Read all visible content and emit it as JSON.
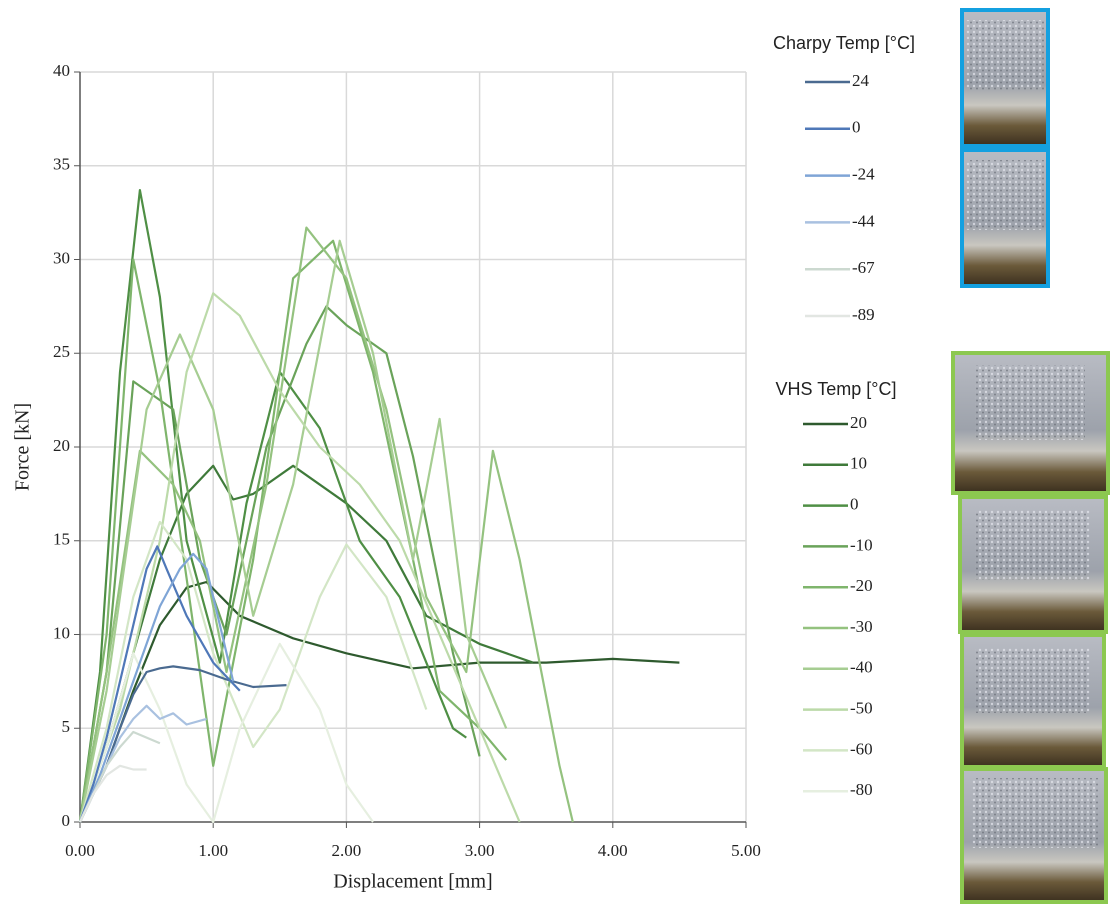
{
  "chart_data": {
    "type": "line",
    "x_label": "Displacement [mm]",
    "y_label": "Force [kN]",
    "xlim": [
      0,
      5
    ],
    "ylim": [
      0,
      40
    ],
    "xticks": [
      {
        "value": 0,
        "label": "0.00"
      },
      {
        "value": 1,
        "label": "1.00"
      },
      {
        "value": 2,
        "label": "2.00"
      },
      {
        "value": 3,
        "label": "3.00"
      },
      {
        "value": 4,
        "label": "4.00"
      },
      {
        "value": 5,
        "label": "5.00"
      }
    ],
    "yticks": [
      0,
      5,
      10,
      15,
      20,
      25,
      30,
      35,
      40
    ],
    "grid": true,
    "charpy": {
      "title": "Charpy Temp [°C]",
      "title_color": "#1a1aa0",
      "series": [
        {
          "name": "24",
          "color": "#4a6a90",
          "x": [
            0,
            0.1,
            0.2,
            0.3,
            0.4,
            0.5,
            0.6,
            0.7,
            0.9,
            1.1,
            1.3,
            1.55
          ],
          "values": [
            0,
            1.5,
            3,
            5,
            6.8,
            8,
            8.2,
            8.3,
            8.1,
            7.6,
            7.2,
            7.3
          ]
        },
        {
          "name": "0",
          "color": "#4f78b8",
          "x": [
            0,
            0.1,
            0.2,
            0.3,
            0.4,
            0.5,
            0.58,
            0.65,
            0.8,
            1.0,
            1.2
          ],
          "values": [
            0,
            2,
            4.5,
            7.5,
            10.5,
            13.5,
            14.7,
            13.5,
            11,
            8.5,
            7
          ]
        },
        {
          "name": "-24",
          "color": "#7fa5d6",
          "x": [
            0,
            0.15,
            0.3,
            0.45,
            0.6,
            0.75,
            0.85,
            0.95,
            1.05,
            1.15
          ],
          "values": [
            0,
            2.5,
            5.5,
            8.5,
            11.5,
            13.5,
            14.3,
            13.5,
            10.5,
            7.5
          ]
        },
        {
          "name": "-44",
          "color": "#a9c1e0",
          "x": [
            0,
            0.1,
            0.2,
            0.3,
            0.4,
            0.5,
            0.6,
            0.7,
            0.8,
            0.95
          ],
          "values": [
            0,
            1.5,
            3,
            4.5,
            5.5,
            6.2,
            5.5,
            5.8,
            5.2,
            5.5
          ]
        },
        {
          "name": "-67",
          "color": "#ccd9d0",
          "x": [
            0,
            0.1,
            0.2,
            0.3,
            0.4,
            0.5,
            0.6
          ],
          "values": [
            0,
            1.5,
            3,
            4,
            4.8,
            4.5,
            4.2
          ]
        },
        {
          "name": "-89",
          "color": "#e2e6e2",
          "x": [
            0,
            0.1,
            0.2,
            0.3,
            0.4,
            0.5
          ],
          "values": [
            0,
            1.5,
            2.5,
            3,
            2.8,
            2.8
          ]
        }
      ]
    },
    "vhs": {
      "title": "VHS Temp [°C]",
      "title_color": "#2d7a2d",
      "series": [
        {
          "name": "20",
          "color": "#2e5a2e",
          "x": [
            0,
            0.2,
            0.4,
            0.6,
            0.8,
            0.95,
            1.2,
            1.6,
            2.0,
            2.5,
            3.0,
            3.5,
            4.0,
            4.5
          ],
          "values": [
            0,
            3,
            7,
            10.5,
            12.5,
            12.8,
            11,
            9.8,
            9,
            8.2,
            8.5,
            8.5,
            8.7,
            8.5
          ]
        },
        {
          "name": "10",
          "color": "#3f7a3a",
          "x": [
            0,
            0.2,
            0.4,
            0.6,
            0.8,
            1.0,
            1.15,
            1.3,
            1.6,
            2.0,
            2.3,
            2.6,
            3.0,
            3.4
          ],
          "values": [
            0,
            4,
            9,
            14,
            17.5,
            19,
            17.2,
            17.5,
            19,
            17,
            15,
            11,
            9.5,
            8.5
          ]
        },
        {
          "name": "0",
          "color": "#4f8f45",
          "x": [
            0,
            0.15,
            0.3,
            0.45,
            0.6,
            0.8,
            1.05,
            1.25,
            1.5,
            1.8,
            2.1,
            2.4,
            2.8,
            2.9
          ],
          "values": [
            0,
            8,
            24,
            33.7,
            28,
            15,
            8.5,
            17,
            24,
            21,
            15,
            12,
            5,
            4.5
          ]
        },
        {
          "name": "-10",
          "color": "#6aa35a",
          "x": [
            0,
            0.2,
            0.4,
            0.7,
            0.9,
            1.1,
            1.4,
            1.7,
            1.85,
            2.0,
            2.3,
            2.5,
            2.8,
            3.0
          ],
          "values": [
            0,
            8,
            23.5,
            22,
            14,
            10,
            20,
            25.5,
            27.5,
            26.5,
            25,
            19.5,
            9,
            3.5
          ]
        },
        {
          "name": "-20",
          "color": "#7fb56c",
          "x": [
            0,
            0.2,
            0.4,
            0.6,
            0.8,
            1.0,
            1.3,
            1.6,
            1.9,
            2.2,
            2.5,
            2.7,
            3.0,
            3.2
          ],
          "values": [
            0,
            10,
            30,
            23,
            13,
            3,
            14,
            29,
            31,
            24,
            14,
            7,
            5,
            3.3
          ]
        },
        {
          "name": "-30",
          "color": "#94c27f",
          "x": [
            0,
            0.2,
            0.45,
            0.7,
            0.9,
            1.1,
            1.4,
            1.7,
            2.0,
            2.3,
            2.6,
            2.9,
            3.1,
            3.3,
            3.6,
            3.7
          ],
          "values": [
            0,
            8,
            19.8,
            18,
            15,
            8,
            18,
            31.7,
            29,
            22,
            12,
            8,
            19.8,
            14,
            3,
            0
          ]
        },
        {
          "name": "-40",
          "color": "#a6cd92",
          "x": [
            0,
            0.2,
            0.5,
            0.75,
            1.0,
            1.3,
            1.6,
            1.95,
            2.2,
            2.5,
            2.7,
            2.9,
            3.2
          ],
          "values": [
            0,
            7,
            22,
            26,
            22,
            11,
            18,
            31,
            25,
            14,
            21.5,
            10,
            5
          ]
        },
        {
          "name": "-50",
          "color": "#bcdaa9",
          "x": [
            0,
            0.3,
            0.6,
            0.8,
            1.0,
            1.2,
            1.5,
            1.8,
            2.1,
            2.4,
            2.7,
            3.0,
            3.3
          ],
          "values": [
            0,
            6,
            15,
            24,
            28.2,
            27,
            23,
            20,
            18,
            15,
            10,
            5,
            0
          ]
        },
        {
          "name": "-60",
          "color": "#d3e6c6",
          "x": [
            0,
            0.2,
            0.4,
            0.6,
            0.8,
            1.0,
            1.3,
            1.5,
            1.8,
            2.0,
            2.3,
            2.6
          ],
          "values": [
            0,
            5,
            12,
            16,
            14,
            9,
            4,
            6,
            12,
            14.8,
            12,
            6
          ]
        },
        {
          "name": "-80",
          "color": "#e6efe0",
          "x": [
            0,
            0.2,
            0.4,
            0.6,
            0.8,
            1.0,
            1.2,
            1.5,
            1.8,
            2.0,
            2.2
          ],
          "values": [
            0,
            4,
            9,
            6,
            2,
            0,
            5,
            9.5,
            6,
            2,
            0
          ]
        }
      ]
    }
  }
}
